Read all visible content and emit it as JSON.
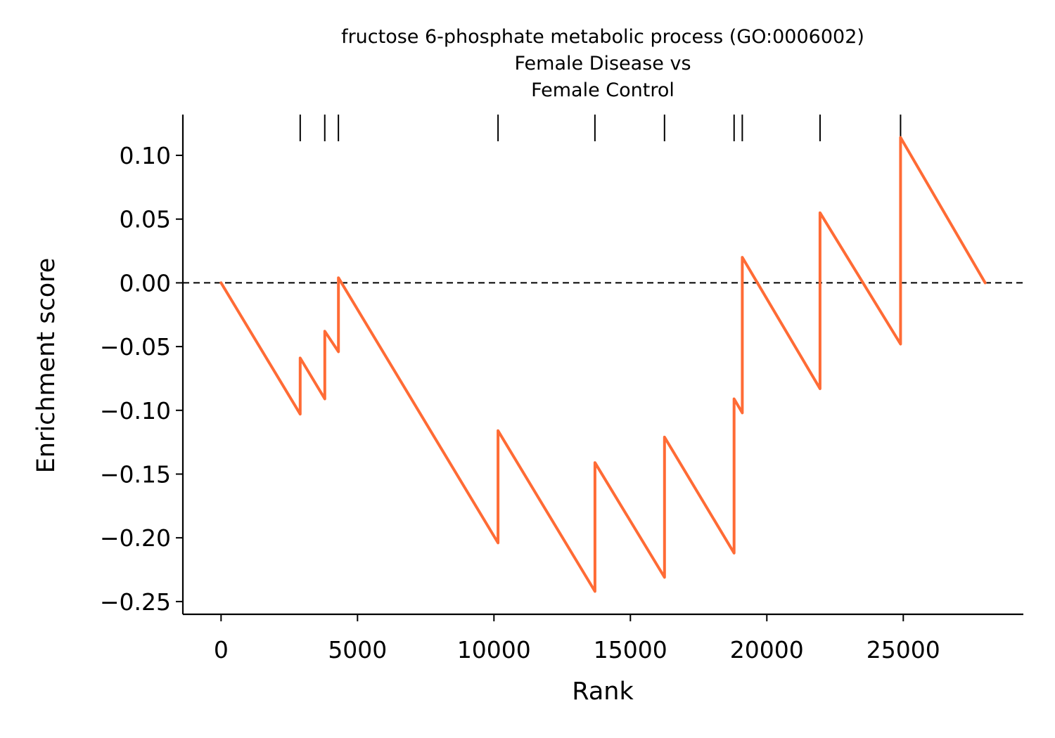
{
  "chart_data": {
    "type": "line",
    "title_lines": [
      "fructose 6-phosphate metabolic process (GO:0006002)",
      "Female Disease vs",
      "Female Control"
    ],
    "xlabel": "Rank",
    "ylabel": "Enrichment score",
    "xlim": [
      -1400,
      29400
    ],
    "ylim": [
      -0.26,
      0.132
    ],
    "x_ticks": [
      0,
      5000,
      10000,
      15000,
      20000,
      25000
    ],
    "x_tick_labels": [
      "0",
      "5000",
      "10000",
      "15000",
      "20000",
      "25000"
    ],
    "y_ticks": [
      0.1,
      0.05,
      0.0,
      -0.05,
      -0.1,
      -0.15,
      -0.2,
      -0.25
    ],
    "y_tick_labels": [
      "0.10",
      "0.05",
      "0.00",
      "−0.05",
      "−0.10",
      "−0.15",
      "−0.20",
      "−0.25"
    ],
    "baseline": 0.0,
    "hit_ranks": [
      2900,
      3800,
      4300,
      10150,
      13700,
      16250,
      18800,
      19100,
      21950,
      24900
    ],
    "series": [
      {
        "color": "#ff6b35",
        "x": [
          0,
          2900,
          2900,
          3800,
          3800,
          4300,
          4300,
          10150,
          10150,
          13700,
          13700,
          16250,
          16250,
          18800,
          18800,
          19100,
          19100,
          21950,
          21950,
          24900,
          24900,
          28000
        ],
        "y": [
          0.0,
          -0.103,
          -0.059,
          -0.091,
          -0.038,
          -0.054,
          0.004,
          -0.204,
          -0.116,
          -0.242,
          -0.141,
          -0.231,
          -0.121,
          -0.212,
          -0.091,
          -0.102,
          0.02,
          -0.083,
          0.055,
          -0.048,
          0.114,
          0.0
        ]
      }
    ]
  }
}
